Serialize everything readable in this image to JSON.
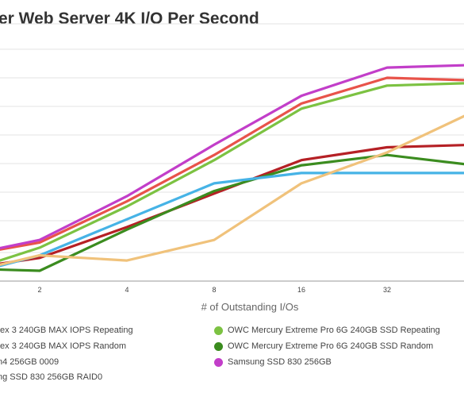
{
  "chart_data": {
    "type": "line",
    "title": "er Web Server 4K I/O Per Second",
    "xlabel": "# of Outstanding I/Os",
    "ylabel": "",
    "x": [
      1,
      2,
      4,
      8,
      16,
      32,
      64
    ],
    "x_tick_labels": [
      "2",
      "4",
      "8",
      "16",
      "32"
    ],
    "grid": true,
    "legend_position": "bottom",
    "series": [
      {
        "name": "tex 3 240GB MAX IOPS Repeating",
        "color": "#e8534a",
        "values": [
          0.9,
          1.5,
          3.1,
          4.9,
          6.9,
          7.9,
          7.8
        ]
      },
      {
        "name": "OWC Mercury Extreme Pro 6G 240GB SSD Repeating",
        "color": "#7cc242",
        "values": [
          0.2,
          1.3,
          2.9,
          4.7,
          6.7,
          7.6,
          7.7
        ]
      },
      {
        "name": "tex 3 240GB MAX IOPS Random",
        "color": "#b52025",
        "values": [
          0.4,
          0.9,
          2.1,
          3.4,
          4.7,
          5.2,
          5.3
        ]
      },
      {
        "name": "OWC Mercury Extreme Pro 6G 240GB SSD Random",
        "color": "#3b8c1f",
        "values": [
          0.5,
          0.4,
          2.0,
          3.5,
          4.5,
          4.9,
          4.5
        ]
      },
      {
        "name": "n4 256GB 0009",
        "color": "#46b3e6",
        "values": [
          0.1,
          1.0,
          2.4,
          3.8,
          4.2,
          4.2,
          4.2
        ]
      },
      {
        "name": "Samsung SSD 830 256GB",
        "color": "#c23ec9",
        "values": [
          0.9,
          1.6,
          3.3,
          5.3,
          7.2,
          8.3,
          8.4
        ]
      },
      {
        "name": "ng SSD 830 256GB RAID0",
        "color": "#f0c27b",
        "values": [
          0.2,
          1.0,
          0.8,
          1.6,
          3.8,
          5.0,
          6.6
        ]
      }
    ],
    "ylim": [
      0,
      10
    ]
  },
  "legend": [
    {
      "label": "tex 3 240GB MAX IOPS Repeating",
      "color": "#e8534a"
    },
    {
      "label": "tex 3 240GB MAX IOPS Random",
      "color": "#b52025"
    },
    {
      "label": "n4 256GB 0009",
      "color": "#46b3e6"
    },
    {
      "label": "ng SSD 830 256GB RAID0",
      "color": "#f0c27b"
    },
    {
      "label": "OWC Mercury Extreme Pro 6G 240GB SSD Repeating",
      "color": "#7cc242"
    },
    {
      "label": "OWC Mercury Extreme Pro 6G 240GB SSD Random",
      "color": "#3b8c1f"
    },
    {
      "label": "Samsung SSD 830 256GB",
      "color": "#c23ec9"
    }
  ]
}
